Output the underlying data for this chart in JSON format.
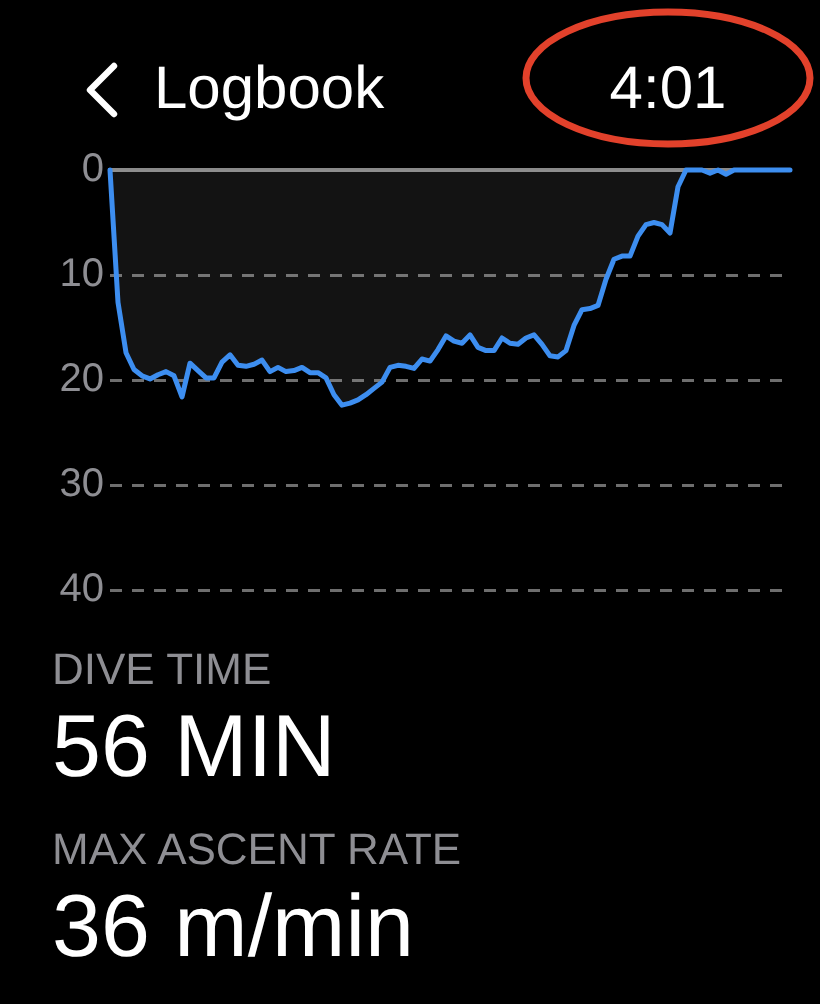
{
  "chart_data": {
    "type": "area",
    "title": "Logbook",
    "categories": [
      null,
      null,
      null,
      null,
      null,
      null,
      null,
      null,
      null,
      null,
      null,
      null,
      null,
      null,
      null,
      null,
      null,
      null,
      null,
      null,
      null,
      null,
      null,
      null,
      null,
      null,
      null,
      null,
      null,
      null,
      null,
      null,
      null,
      null,
      null,
      null,
      null,
      null,
      null,
      null,
      null,
      null,
      null,
      null,
      null,
      null,
      null,
      null,
      null,
      null,
      null,
      null,
      null,
      null,
      null,
      null,
      null,
      null,
      null,
      null,
      null,
      null,
      null,
      null,
      null,
      null,
      null,
      null,
      null,
      null,
      null,
      null,
      null,
      null,
      null,
      null,
      null,
      null,
      null,
      null,
      null,
      null,
      null,
      null,
      null,
      null
    ],
    "values": [
      0,
      12.6,
      17.4,
      19.0,
      19.6,
      19.9,
      19.5,
      19.2,
      19.6,
      21.6,
      18.4,
      19.1,
      19.8,
      19.8,
      18.3,
      17.6,
      18.6,
      18.7,
      18.5,
      18.1,
      19.2,
      18.8,
      19.2,
      19.1,
      18.8,
      19.3,
      19.3,
      19.8,
      21.4,
      22.4,
      22.2,
      21.9,
      21.4,
      20.8,
      20.2,
      18.8,
      18.6,
      18.7,
      18.9,
      18.0,
      18.2,
      17.1,
      15.8,
      16.3,
      16.5,
      15.7,
      16.9,
      17.2,
      17.2,
      16.0,
      16.5,
      16.6,
      16.0,
      15.7,
      16.6,
      17.7,
      17.8,
      17.2,
      14.8,
      13.3,
      13.2,
      12.9,
      10.4,
      8.5,
      8.2,
      8.2,
      6.3,
      5.2,
      5.0,
      5.2,
      6.0,
      1.6,
      0,
      0,
      0,
      0.3,
      0,
      0.4,
      0,
      0,
      0,
      0,
      0,
      0,
      0,
      0
    ],
    "color": "#3d8ef0",
    "ylim": [
      40,
      0
    ],
    "yticks": [
      0,
      10,
      20,
      30,
      40
    ],
    "grid": "y",
    "tick_labels": "y",
    "annotations": [
      "4:01",
      "DIVE TIME",
      "56 MIN",
      "MAX ASCENT RATE",
      "36 m/min"
    ]
  }
}
